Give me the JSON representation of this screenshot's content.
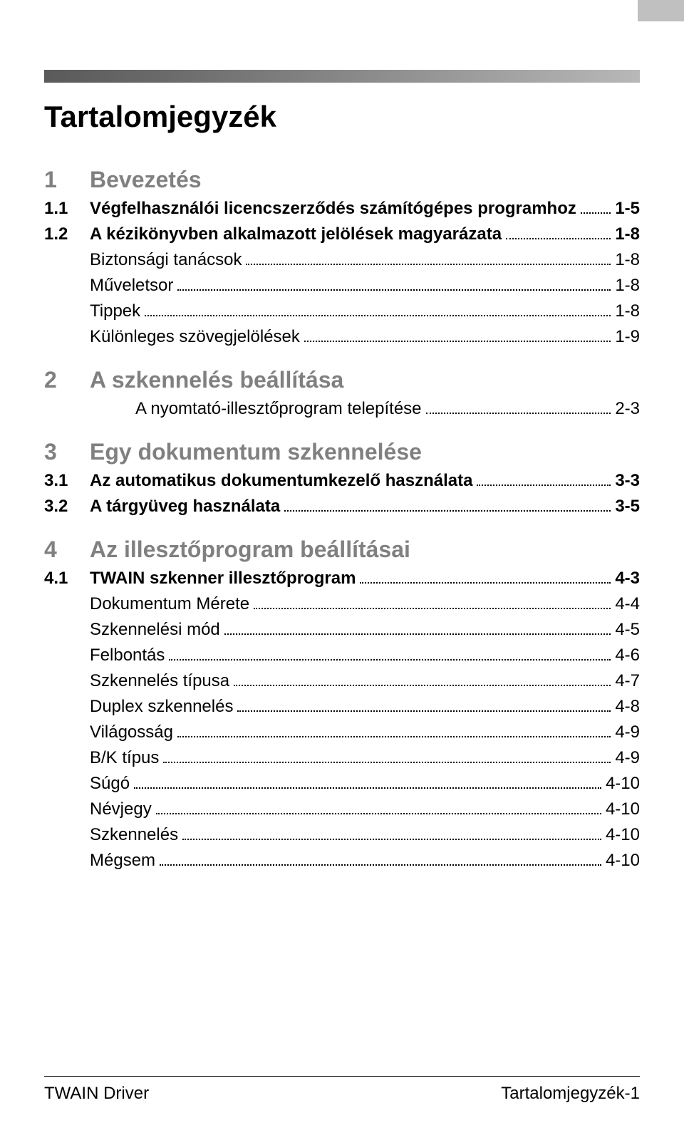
{
  "title": "Tartalomjegyzék",
  "chapters": [
    {
      "num": "1",
      "title": "Bevezetés",
      "sections": [
        {
          "num": "1.1",
          "title": "Végfelhasználói licencszerződés számítógépes programhoz",
          "page": "1-5",
          "bold": true
        },
        {
          "num": "1.2",
          "title": "A kézikönyvben alkalmazott jelölések magyarázata",
          "page": "1-8",
          "bold": true
        },
        {
          "num": "",
          "title": "Biztonsági tanácsok",
          "page": "1-8",
          "bold": false,
          "indent": 1
        },
        {
          "num": "",
          "title": "Műveletsor",
          "page": "1-8",
          "bold": false,
          "indent": 1
        },
        {
          "num": "",
          "title": "Tippek",
          "page": "1-8",
          "bold": false,
          "indent": 1
        },
        {
          "num": "",
          "title": "Különleges szövegjelölések",
          "page": "1-9",
          "bold": false,
          "indent": 1
        }
      ]
    },
    {
      "num": "2",
      "title": "A szkennelés beállítása",
      "sections": [
        {
          "num": "",
          "title": "A nyomtató-illesztőprogram telepítése",
          "page": "2-3",
          "bold": false,
          "indent": 2
        }
      ]
    },
    {
      "num": "3",
      "title": "Egy dokumentum szkennelése",
      "sections": [
        {
          "num": "3.1",
          "title": "Az automatikus dokumentumkezelő használata",
          "page": "3-3",
          "bold": true
        },
        {
          "num": "3.2",
          "title": "A tárgyüveg használata",
          "page": "3-5",
          "bold": true
        }
      ]
    },
    {
      "num": "4",
      "title": "Az illesztőprogram beállításai",
      "sections": [
        {
          "num": "4.1",
          "title": "TWAIN szkenner illesztőprogram",
          "page": "4-3",
          "bold": true
        },
        {
          "num": "",
          "title": "Dokumentum Mérete",
          "page": "4-4",
          "bold": false,
          "indent": 1
        },
        {
          "num": "",
          "title": "Szkennelési mód",
          "page": "4-5",
          "bold": false,
          "indent": 1
        },
        {
          "num": "",
          "title": "Felbontás",
          "page": "4-6",
          "bold": false,
          "indent": 1
        },
        {
          "num": "",
          "title": "Szkennelés típusa",
          "page": "4-7",
          "bold": false,
          "indent": 1
        },
        {
          "num": "",
          "title": "Duplex szkennelés",
          "page": "4-8",
          "bold": false,
          "indent": 1
        },
        {
          "num": "",
          "title": "Világosság",
          "page": "4-9",
          "bold": false,
          "indent": 1
        },
        {
          "num": "",
          "title": "B/K típus",
          "page": "4-9",
          "bold": false,
          "indent": 1
        },
        {
          "num": "",
          "title": "Súgó",
          "page": "4-10",
          "bold": false,
          "indent": 1
        },
        {
          "num": "",
          "title": "Névjegy",
          "page": "4-10",
          "bold": false,
          "indent": 1
        },
        {
          "num": "",
          "title": "Szkennelés",
          "page": "4-10",
          "bold": false,
          "indent": 1
        },
        {
          "num": "",
          "title": "Mégsem",
          "page": "4-10",
          "bold": false,
          "indent": 1
        }
      ]
    }
  ],
  "footer": {
    "left": "TWAIN Driver",
    "right": "Tartalomjegyzék-1"
  },
  "colors": {
    "chapter_text": "#808080",
    "body_text": "#000000",
    "corner_block": "#c0c0c0",
    "grad_start": "#5a5a5a",
    "grad_end": "#b8b8b8",
    "background": "#ffffff"
  },
  "typography": {
    "title_fontsize": 42,
    "chapter_fontsize": 32,
    "entry_fontsize": 24,
    "footer_fontsize": 24,
    "font_family": "Arial"
  }
}
